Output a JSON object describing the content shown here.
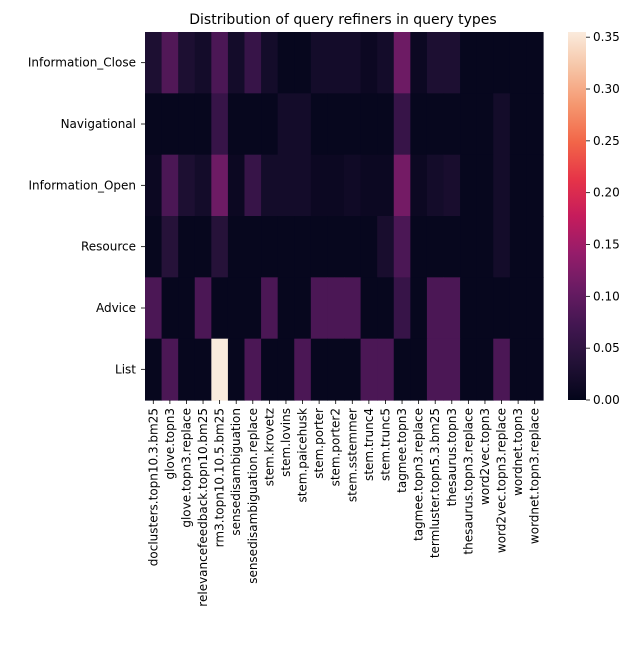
{
  "chart_data": {
    "type": "heatmap",
    "title": "Distribution of query refiners in query types",
    "xlabel": "",
    "ylabel": "",
    "rows": [
      "Information_Close",
      "Navigational",
      "Information_Open",
      "Resource",
      "Advice",
      "List"
    ],
    "columns": [
      "doclusters.topn10.3.bm25",
      "glove.topn3",
      "glove.topn3.replace",
      "relevancefeedback.topn10.bm25",
      "rm3.topn10.10.5.bm25",
      "sensedisambiguation",
      "sensedisambiguation.replace",
      "stem.krovetz",
      "stem.lovins",
      "stem.paicehusk",
      "stem.porter",
      "stem.porter2",
      "stem.sstemmer",
      "stem.trunc4",
      "stem.trunc5",
      "tagmee.topn3",
      "tagmee.topn3.replace",
      "termluster.topn5.3.bm25",
      "thesaurus.topn3",
      "thesaurus.topn3.replace",
      "word2vec.topn3",
      "word2vec.topn3.replace",
      "wordnet.topn3",
      "wordnet.topn3.replace"
    ],
    "values": [
      [
        0.03,
        0.085,
        0.03,
        0.02,
        0.08,
        0.02,
        0.06,
        0.02,
        0.005,
        0.005,
        0.02,
        0.02,
        0.02,
        0.01,
        0.02,
        0.11,
        0.01,
        0.03,
        0.03,
        0.005,
        0.005,
        0.005,
        0.005,
        0.005
      ],
      [
        0.005,
        0.005,
        0.005,
        0.005,
        0.06,
        0.005,
        0.005,
        0.005,
        0.02,
        0.02,
        0.005,
        0.005,
        0.005,
        0.005,
        0.005,
        0.06,
        0.005,
        0.005,
        0.005,
        0.005,
        0.005,
        0.02,
        0.005,
        0.005
      ],
      [
        0.01,
        0.08,
        0.03,
        0.02,
        0.11,
        0.01,
        0.06,
        0.02,
        0.02,
        0.02,
        0.01,
        0.01,
        0.015,
        0.01,
        0.01,
        0.115,
        0.01,
        0.02,
        0.025,
        0.005,
        0.005,
        0.02,
        0.005,
        0.005
      ],
      [
        0.005,
        0.04,
        0.005,
        0.005,
        0.04,
        0.005,
        0.005,
        0.005,
        0.005,
        0.005,
        0.005,
        0.005,
        0.005,
        0.005,
        0.025,
        0.08,
        0.005,
        0.005,
        0.005,
        0.005,
        0.005,
        0.02,
        0.005,
        0.005
      ],
      [
        0.08,
        0.005,
        0.005,
        0.08,
        0.005,
        0.005,
        0.005,
        0.08,
        0.005,
        0.005,
        0.08,
        0.08,
        0.08,
        0.005,
        0.005,
        0.06,
        0.005,
        0.08,
        0.08,
        0.005,
        0.005,
        0.005,
        0.005,
        0.005
      ],
      [
        0.005,
        0.08,
        0.005,
        0.005,
        0.355,
        0.005,
        0.08,
        0.005,
        0.005,
        0.08,
        0.005,
        0.005,
        0.005,
        0.08,
        0.08,
        0.005,
        0.005,
        0.08,
        0.08,
        0.005,
        0.005,
        0.08,
        0.005,
        0.005
      ]
    ],
    "vmin": 0,
    "vmax": 0.355,
    "colorbar_ticks": [
      0.0,
      0.05,
      0.1,
      0.15,
      0.2,
      0.25,
      0.3,
      0.35
    ],
    "colormap": "rocket"
  }
}
